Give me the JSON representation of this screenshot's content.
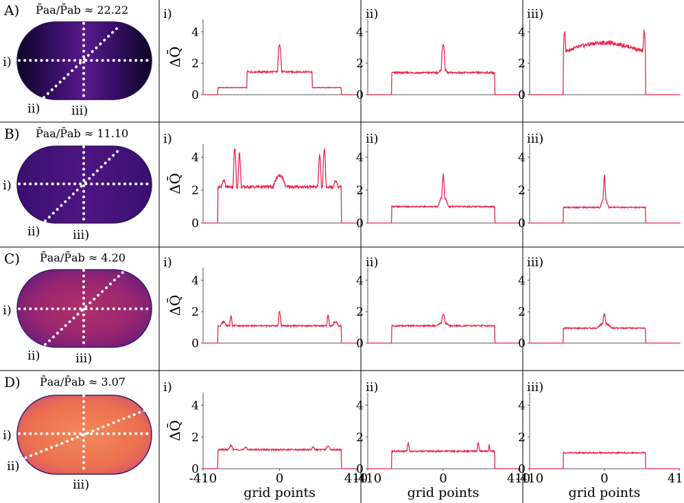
{
  "figure": {
    "rows": [
      {
        "letter": "A)",
        "ratio_text": "P̄aa/P̄ab ≈ 22.22",
        "ratio_value": 22.22,
        "stadium_palette": "dark"
      },
      {
        "letter": "B)",
        "ratio_text": "P̄aa/P̄ab ≈ 11.10",
        "ratio_value": 11.1,
        "stadium_palette": "purple"
      },
      {
        "letter": "C)",
        "ratio_text": "P̄aa/P̄ab ≈ 4.20",
        "ratio_value": 4.2,
        "stadium_palette": "magenta"
      },
      {
        "letter": "D)",
        "ratio_text": "P̄aa/P̄ab ≈ 3.07",
        "ratio_value": 3.07,
        "stadium_palette": "orange"
      }
    ],
    "cut_labels": [
      "i)",
      "ii)",
      "iii)"
    ],
    "line_color": "#e8254d"
  },
  "chart_data": {
    "type": "line",
    "ylabel": "ΔQ̄",
    "xlabel": "grid points",
    "xlim": [
      -410,
      410
    ],
    "ylim": [
      0,
      4.8
    ],
    "xticks": [
      "-410",
      "0",
      "410"
    ],
    "yticks": [
      "0",
      "2",
      "4"
    ],
    "panels": [
      [
        {
          "label": "i)",
          "plateau": 0.0,
          "edge": 330,
          "segments": [
            [
              0,
              330,
              0.45
            ],
            [
              0,
              175,
              1.45
            ]
          ],
          "peaks": [
            [
              0,
              3.3,
              9
            ]
          ],
          "wave": 0.0
        },
        {
          "label": "ii)",
          "plateau": 0.0,
          "edge": 280,
          "segments": [
            [
              0,
              280,
              1.4
            ]
          ],
          "peaks": [
            [
              0,
              3.3,
              9
            ],
            [
              0,
              1.65,
              40
            ]
          ],
          "wave": 0.0
        },
        {
          "label": "iii)",
          "plateau": 2.7,
          "edge": 225,
          "segments": [],
          "peaks": [
            [
              -218,
              4.1,
              7
            ],
            [
              218,
              4.1,
              7
            ]
          ],
          "wave": 0.6
        }
      ],
      [
        {
          "label": "i)",
          "plateau": 2.2,
          "edge": 330,
          "segments": [],
          "peaks": [
            [
              -240,
              4.5,
              8
            ],
            [
              -215,
              4.2,
              8
            ],
            [
              240,
              4.5,
              8
            ],
            [
              215,
              4.2,
              8
            ],
            [
              -300,
              2.6,
              20
            ],
            [
              300,
              2.6,
              20
            ],
            [
              0,
              2.9,
              45
            ]
          ],
          "wave": 0.0
        },
        {
          "label": "ii)",
          "plateau": 1.0,
          "edge": 280,
          "segments": [],
          "peaks": [
            [
              0,
              2.9,
              7
            ],
            [
              0,
              1.6,
              30
            ]
          ],
          "wave": 0.0
        },
        {
          "label": "iii)",
          "plateau": 0.95,
          "edge": 225,
          "segments": [],
          "peaks": [
            [
              0,
              2.9,
              6
            ],
            [
              0,
              1.5,
              25
            ]
          ],
          "wave": 0.0
        }
      ],
      [
        {
          "label": "i)",
          "plateau": 1.1,
          "edge": 330,
          "segments": [],
          "peaks": [
            [
              0,
              2.0,
              8
            ],
            [
              -260,
              1.8,
              7
            ],
            [
              260,
              1.8,
              7
            ],
            [
              -300,
              1.35,
              25
            ],
            [
              300,
              1.35,
              25
            ]
          ],
          "wave": 0.0
        },
        {
          "label": "ii)",
          "plateau": 1.1,
          "edge": 280,
          "segments": [],
          "peaks": [
            [
              0,
              1.85,
              12
            ],
            [
              0,
              1.3,
              60
            ]
          ],
          "wave": 0.0
        },
        {
          "label": "iii)",
          "plateau": 0.95,
          "edge": 225,
          "segments": [],
          "peaks": [
            [
              0,
              1.85,
              10
            ],
            [
              0,
              1.25,
              55
            ]
          ],
          "wave": 0.0
        }
      ],
      [
        {
          "label": "i)",
          "plateau": 1.2,
          "edge": 330,
          "segments": [],
          "peaks": [
            [
              -260,
              1.45,
              20
            ],
            [
              260,
              1.45,
              20
            ],
            [
              -180,
              1.35,
              20
            ],
            [
              180,
              1.35,
              20
            ]
          ],
          "wave": 0.0
        },
        {
          "label": "ii)",
          "plateau": 1.1,
          "edge": 280,
          "segments": [],
          "peaks": [
            [
              -190,
              1.6,
              8
            ],
            [
              190,
              1.6,
              8
            ],
            [
              250,
              1.45,
              6
            ]
          ],
          "wave": 0.0
        },
        {
          "label": "iii)",
          "plateau": 1.0,
          "edge": 225,
          "segments": [],
          "peaks": [],
          "wave": 0.0
        }
      ]
    ]
  }
}
